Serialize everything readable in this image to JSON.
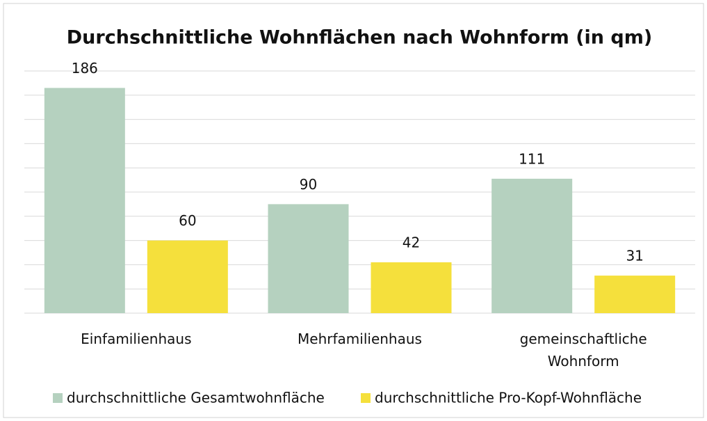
{
  "chart_data": {
    "type": "bar",
    "title": "Durchschnittliche Wohnflächen nach Wohnform (in qm)",
    "categories": [
      "Einfamilienhaus",
      "Mehrfamilienhaus",
      "gemeinschaftliche Wohnform"
    ],
    "series": [
      {
        "name": "durchschnittliche Gesamtwohnfläche",
        "color": "#b5d1bf",
        "values": [
          186,
          90,
          111
        ]
      },
      {
        "name": "durchschnittliche Pro-Kopf-Wohnfläche",
        "color": "#f5e03c",
        "values": [
          60,
          42,
          31
        ]
      }
    ],
    "ylim": [
      0,
      200
    ],
    "yticks": [
      0,
      20,
      40,
      60,
      80,
      100,
      120,
      140,
      160,
      180,
      200
    ],
    "grid": true,
    "tick_labels": false,
    "legend": "bottom"
  }
}
